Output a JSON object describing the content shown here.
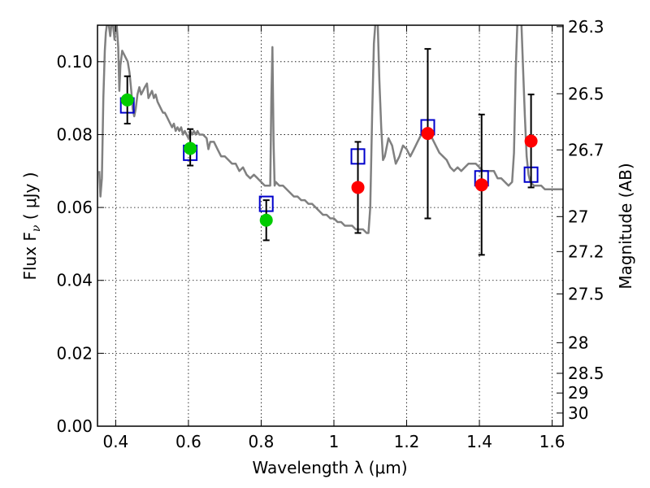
{
  "chart_data": {
    "type": "scatter",
    "xlabel": "Wavelength  λ (μm)",
    "ylabel": "Flux  F",
    "ylabel_sub": "ν",
    "ylabel_units": "  ( μJy )",
    "ylabel_right": "Magnitude (AB)",
    "xlim": [
      0.35,
      1.63
    ],
    "ylim": [
      0.0,
      0.11
    ],
    "grid": true,
    "x_ticks": [
      0.4,
      0.6,
      0.8,
      1.0,
      1.2,
      1.4,
      1.6
    ],
    "x_tick_labels": [
      "0.4",
      "0.6",
      "0.8",
      "1",
      "1.2",
      "1.4",
      "1.6"
    ],
    "y_ticks": [
      0.0,
      0.02,
      0.04,
      0.06,
      0.08,
      0.1
    ],
    "y_tick_labels": [
      "0.00",
      "0.02",
      "0.04",
      "0.06",
      "0.08",
      "0.10"
    ],
    "right_ticks": [
      {
        "label": "26.3",
        "flux": 0.1096
      },
      {
        "label": "26.5",
        "flux": 0.0912
      },
      {
        "label": "26.7",
        "flux": 0.0758
      },
      {
        "label": "27",
        "flux": 0.0575
      },
      {
        "label": "27.2",
        "flux": 0.0479
      },
      {
        "label": "27.5",
        "flux": 0.0363
      },
      {
        "label": "28",
        "flux": 0.0229
      },
      {
        "label": "28.5",
        "flux": 0.0145
      },
      {
        "label": "29",
        "flux": 0.0091
      },
      {
        "label": "30",
        "flux": 0.0036
      }
    ],
    "model_spectrum": {
      "color": "#808080",
      "points": [
        [
          0.355,
          0.07
        ],
        [
          0.358,
          0.063
        ],
        [
          0.362,
          0.068
        ],
        [
          0.366,
          0.09
        ],
        [
          0.37,
          0.103
        ],
        [
          0.373,
          0.108
        ],
        [
          0.377,
          0.111
        ],
        [
          0.381,
          0.11
        ],
        [
          0.385,
          0.107
        ],
        [
          0.389,
          0.111
        ],
        [
          0.393,
          0.11
        ],
        [
          0.397,
          0.106
        ],
        [
          0.4,
          0.111
        ],
        [
          0.403,
          0.11
        ],
        [
          0.407,
          0.104
        ],
        [
          0.41,
          0.092
        ],
        [
          0.413,
          0.099
        ],
        [
          0.418,
          0.103
        ],
        [
          0.423,
          0.102
        ],
        [
          0.428,
          0.101
        ],
        [
          0.433,
          0.1
        ],
        [
          0.438,
          0.097
        ],
        [
          0.443,
          0.092
        ],
        [
          0.447,
          0.087
        ],
        [
          0.451,
          0.085
        ],
        [
          0.455,
          0.087
        ],
        [
          0.46,
          0.091
        ],
        [
          0.465,
          0.093
        ],
        [
          0.47,
          0.091
        ],
        [
          0.475,
          0.092
        ],
        [
          0.48,
          0.093
        ],
        [
          0.486,
          0.094
        ],
        [
          0.49,
          0.09
        ],
        [
          0.495,
          0.091
        ],
        [
          0.5,
          0.092
        ],
        [
          0.505,
          0.09
        ],
        [
          0.51,
          0.091
        ],
        [
          0.515,
          0.089
        ],
        [
          0.52,
          0.088
        ],
        [
          0.525,
          0.087
        ],
        [
          0.53,
          0.086
        ],
        [
          0.535,
          0.086
        ],
        [
          0.54,
          0.085
        ],
        [
          0.545,
          0.084
        ],
        [
          0.55,
          0.083
        ],
        [
          0.555,
          0.082
        ],
        [
          0.56,
          0.083
        ],
        [
          0.565,
          0.081
        ],
        [
          0.57,
          0.082
        ],
        [
          0.575,
          0.081
        ],
        [
          0.58,
          0.082
        ],
        [
          0.585,
          0.08
        ],
        [
          0.59,
          0.081
        ],
        [
          0.595,
          0.08
        ],
        [
          0.6,
          0.079
        ],
        [
          0.605,
          0.081
        ],
        [
          0.61,
          0.08
        ],
        [
          0.615,
          0.081
        ],
        [
          0.62,
          0.08
        ],
        [
          0.625,
          0.081
        ],
        [
          0.63,
          0.08
        ],
        [
          0.64,
          0.08
        ],
        [
          0.65,
          0.079
        ],
        [
          0.655,
          0.076
        ],
        [
          0.66,
          0.078
        ],
        [
          0.67,
          0.078
        ],
        [
          0.68,
          0.076
        ],
        [
          0.69,
          0.074
        ],
        [
          0.7,
          0.074
        ],
        [
          0.71,
          0.073
        ],
        [
          0.72,
          0.072
        ],
        [
          0.73,
          0.072
        ],
        [
          0.74,
          0.07
        ],
        [
          0.75,
          0.071
        ],
        [
          0.76,
          0.069
        ],
        [
          0.77,
          0.068
        ],
        [
          0.78,
          0.069
        ],
        [
          0.79,
          0.068
        ],
        [
          0.8,
          0.067
        ],
        [
          0.81,
          0.066
        ],
        [
          0.82,
          0.066
        ],
        [
          0.825,
          0.066
        ],
        [
          0.828,
          0.09
        ],
        [
          0.831,
          0.104
        ],
        [
          0.834,
          0.078
        ],
        [
          0.837,
          0.066
        ],
        [
          0.84,
          0.067
        ],
        [
          0.85,
          0.066
        ],
        [
          0.86,
          0.066
        ],
        [
          0.87,
          0.065
        ],
        [
          0.88,
          0.064
        ],
        [
          0.89,
          0.063
        ],
        [
          0.9,
          0.063
        ],
        [
          0.91,
          0.062
        ],
        [
          0.92,
          0.062
        ],
        [
          0.93,
          0.061
        ],
        [
          0.94,
          0.061
        ],
        [
          0.95,
          0.06
        ],
        [
          0.96,
          0.059
        ],
        [
          0.97,
          0.058
        ],
        [
          0.98,
          0.058
        ],
        [
          0.99,
          0.057
        ],
        [
          1.0,
          0.057
        ],
        [
          1.01,
          0.056
        ],
        [
          1.02,
          0.056
        ],
        [
          1.03,
          0.055
        ],
        [
          1.04,
          0.055
        ],
        [
          1.05,
          0.055
        ],
        [
          1.06,
          0.054
        ],
        [
          1.07,
          0.054
        ],
        [
          1.08,
          0.054
        ],
        [
          1.09,
          0.053
        ],
        [
          1.095,
          0.053
        ],
        [
          1.1,
          0.06
        ],
        [
          1.105,
          0.085
        ],
        [
          1.11,
          0.105
        ],
        [
          1.115,
          0.112
        ],
        [
          1.12,
          0.112
        ],
        [
          1.125,
          0.095
        ],
        [
          1.13,
          0.082
        ],
        [
          1.135,
          0.073
        ],
        [
          1.14,
          0.074
        ],
        [
          1.15,
          0.079
        ],
        [
          1.16,
          0.077
        ],
        [
          1.17,
          0.072
        ],
        [
          1.18,
          0.074
        ],
        [
          1.19,
          0.077
        ],
        [
          1.2,
          0.076
        ],
        [
          1.21,
          0.074
        ],
        [
          1.22,
          0.076
        ],
        [
          1.23,
          0.078
        ],
        [
          1.24,
          0.08
        ],
        [
          1.25,
          0.081
        ],
        [
          1.26,
          0.081
        ],
        [
          1.27,
          0.079
        ],
        [
          1.28,
          0.077
        ],
        [
          1.29,
          0.075
        ],
        [
          1.3,
          0.074
        ],
        [
          1.31,
          0.073
        ],
        [
          1.32,
          0.071
        ],
        [
          1.33,
          0.07
        ],
        [
          1.34,
          0.071
        ],
        [
          1.35,
          0.07
        ],
        [
          1.36,
          0.071
        ],
        [
          1.37,
          0.072
        ],
        [
          1.38,
          0.072
        ],
        [
          1.39,
          0.072
        ],
        [
          1.4,
          0.071
        ],
        [
          1.41,
          0.07
        ],
        [
          1.42,
          0.07
        ],
        [
          1.43,
          0.07
        ],
        [
          1.44,
          0.07
        ],
        [
          1.45,
          0.068
        ],
        [
          1.46,
          0.068
        ],
        [
          1.47,
          0.067
        ],
        [
          1.48,
          0.066
        ],
        [
          1.49,
          0.067
        ],
        [
          1.495,
          0.075
        ],
        [
          1.5,
          0.098
        ],
        [
          1.505,
          0.112
        ],
        [
          1.51,
          0.112
        ],
        [
          1.515,
          0.112
        ],
        [
          1.52,
          0.098
        ],
        [
          1.525,
          0.085
        ],
        [
          1.53,
          0.074
        ],
        [
          1.535,
          0.069
        ],
        [
          1.54,
          0.067
        ],
        [
          1.55,
          0.066
        ],
        [
          1.56,
          0.066
        ],
        [
          1.57,
          0.066
        ],
        [
          1.58,
          0.065
        ],
        [
          1.59,
          0.065
        ],
        [
          1.6,
          0.065
        ],
        [
          1.61,
          0.065
        ],
        [
          1.62,
          0.065
        ],
        [
          1.63,
          0.065
        ]
      ]
    },
    "model_bands": {
      "color": "#0000cc",
      "points": [
        [
          0.432,
          0.088
        ],
        [
          0.605,
          0.075
        ],
        [
          0.814,
          0.061
        ],
        [
          1.066,
          0.074
        ],
        [
          1.258,
          0.082
        ],
        [
          1.406,
          0.068
        ],
        [
          1.542,
          0.069
        ]
      ]
    },
    "observed_optical": {
      "color": "#00cc00",
      "points": [
        {
          "x": 0.432,
          "y": 0.0895,
          "err_lo": 0.083,
          "err_hi": 0.096
        },
        {
          "x": 0.605,
          "y": 0.0762,
          "err_lo": 0.0715,
          "err_hi": 0.0815
        },
        {
          "x": 0.814,
          "y": 0.0565,
          "err_lo": 0.051,
          "err_hi": 0.062
        }
      ]
    },
    "observed_nir": {
      "color": "#ff0000",
      "points": [
        {
          "x": 1.066,
          "y": 0.0655,
          "err_lo": 0.053,
          "err_hi": 0.078
        },
        {
          "x": 1.258,
          "y": 0.0803,
          "err_lo": 0.057,
          "err_hi": 0.1035
        },
        {
          "x": 1.406,
          "y": 0.0662,
          "err_lo": 0.047,
          "err_hi": 0.0855
        },
        {
          "x": 1.542,
          "y": 0.0782,
          "err_lo": 0.0655,
          "err_hi": 0.091
        }
      ]
    }
  }
}
